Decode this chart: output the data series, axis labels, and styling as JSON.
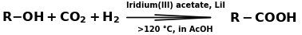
{
  "background_color": "#ffffff",
  "left_text_parts": [
    "R-OH + CO",
    "2",
    "+H",
    "2"
  ],
  "right_text": "R-COOH",
  "above_arrow": "Iridium(III) acetate, LiI",
  "below_arrow": ">120 °C, in AcOH",
  "arrow_color": "#000000",
  "text_color": "#000000",
  "bold_fontsize": 11.5,
  "small_fontsize": 7.0,
  "figwidth": 3.78,
  "figheight": 0.45,
  "dpi": 100
}
